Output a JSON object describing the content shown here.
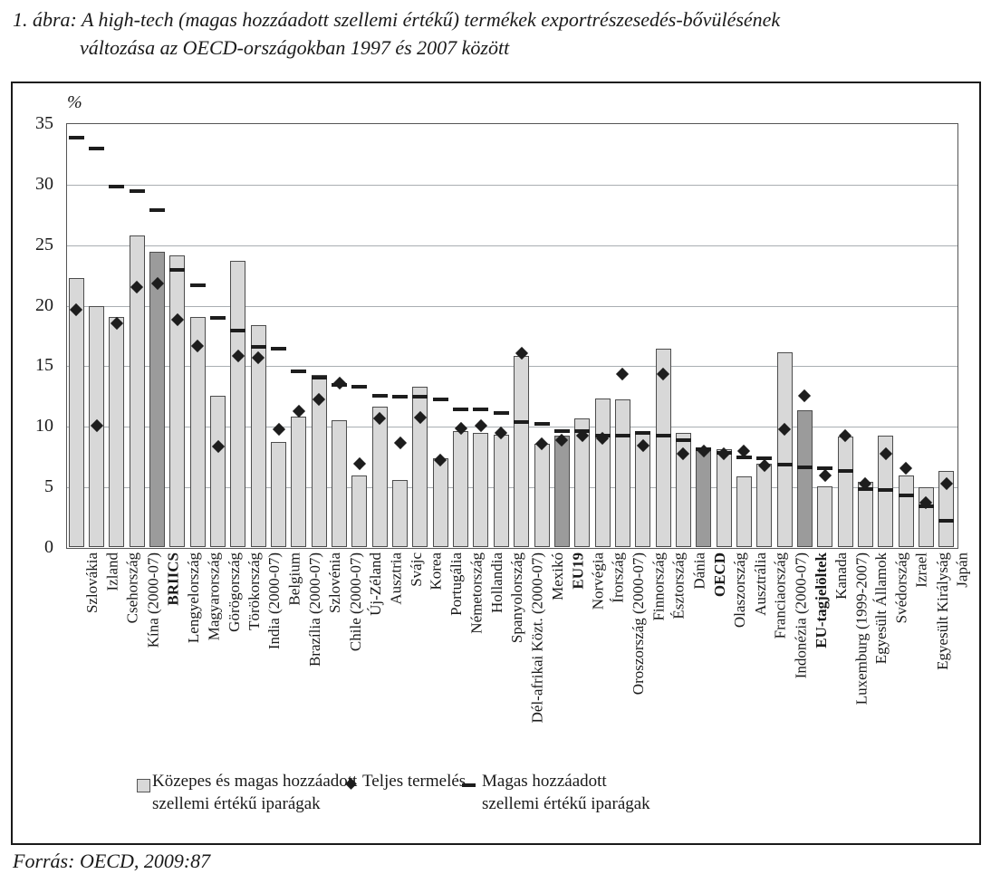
{
  "figure": {
    "title_line1": "1. ábra: A high-tech (magas hozzáadott szellemi értékű) termékek exportrészesedés-bővülésének",
    "title_line2": "változása az OECD-országokban 1997 és 2007 között",
    "unit_label": "%",
    "source": "Forrás: OECD, 2009:87"
  },
  "legend": {
    "bar_label_line1": "Közepes és magas hozzáadott",
    "bar_label_line2": "szellemi értékű iparágak",
    "diamond_label": "Teljes termelés",
    "dash_label_line1": "Magas hozzáadott",
    "dash_label_line2": "szellemi értékű iparágak"
  },
  "chart_data": {
    "type": "bar",
    "title": "A high-tech termékek exportrészesedés-bővülésének változása az OECD-országokban 1997 és 2007 között",
    "xlabel": "",
    "ylabel": "%",
    "ylim": [
      0,
      35
    ],
    "yticks": [
      0,
      5,
      10,
      15,
      20,
      25,
      30,
      35
    ],
    "grid": true,
    "legend_position": "bottom",
    "categories": [
      "Szlovákia",
      "Izland",
      "Csehország",
      "Kína (2000-07)",
      "BRIICS",
      "Lengyelország",
      "Magyarország",
      "Görögország",
      "Törökország",
      "India (2000-07)",
      "Belgium",
      "Brazília (2000-07)",
      "Szlovénia",
      "Chile (2000-07)",
      "Új-Zéland",
      "Ausztria",
      "Svájc",
      "Korea",
      "Portugália",
      "Németország",
      "Hollandia",
      "Spanyolország",
      "Dél-afrikai Közt. (2000-07)",
      "Mexikó",
      "EU19",
      "Norvégia",
      "Írország",
      "Oroszország (2000-07)",
      "Finnország",
      "Észtország",
      "Dánia",
      "OECD",
      "Olaszország",
      "Ausztrália",
      "Franciaország",
      "Indonézia (2000-07)",
      "EU-tagjelöltek",
      "Kanada",
      "Luxemburg (1999-2007)",
      "Egyesült Államok",
      "Svédország",
      "Izrael",
      "Egyesült Királyság",
      "Japán"
    ],
    "emphasized_categories": [
      "BRIICS",
      "EU19",
      "OECD",
      "EU-tagjelöltek"
    ],
    "series": [
      {
        "name": "Közepes és magas hozzáadott szellemi értékű iparágak",
        "marker": "bar",
        "values": [
          22.2,
          19.9,
          19.0,
          25.7,
          24.4,
          24.1,
          19.0,
          12.5,
          23.6,
          18.3,
          8.7,
          10.8,
          14.2,
          10.5,
          5.9,
          11.6,
          5.5,
          13.2,
          7.3,
          9.6,
          9.4,
          9.3,
          15.8,
          8.5,
          9.2,
          10.6,
          12.3,
          12.2,
          9.6,
          16.4,
          9.4,
          8.2,
          8.1,
          5.8,
          6.9,
          16.1,
          11.3,
          5.0,
          9.1,
          5.4,
          9.2,
          5.9,
          4.9,
          6.3
        ]
      },
      {
        "name": "Teljes termelés",
        "marker": "diamond",
        "values": [
          19.6,
          10.0,
          18.5,
          21.5,
          21.8,
          18.8,
          16.6,
          8.3,
          15.8,
          15.6,
          9.7,
          11.2,
          12.2,
          13.5,
          6.9,
          10.6,
          8.6,
          10.7,
          7.2,
          9.8,
          10.0,
          9.4,
          16.0,
          8.5,
          8.8,
          9.2,
          9.0,
          14.3,
          8.4,
          14.3,
          7.7,
          7.9,
          7.7,
          7.9,
          6.7,
          9.7,
          12.5,
          5.9,
          9.2,
          5.2,
          7.7,
          6.5,
          3.7,
          5.2
        ]
      },
      {
        "name": "Magas hozzáadott szellemi értékű iparágak",
        "marker": "dash",
        "values": [
          33.8,
          32.9,
          29.8,
          29.4,
          27.8,
          22.9,
          21.6,
          18.9,
          17.9,
          16.5,
          16.4,
          14.5,
          14.0,
          13.4,
          13.2,
          12.5,
          12.4,
          12.4,
          12.2,
          11.4,
          11.4,
          11.1,
          10.3,
          10.2,
          9.6,
          9.6,
          9.2,
          9.2,
          9.4,
          9.2,
          8.8,
          8.1,
          7.8,
          7.4,
          7.3,
          6.8,
          6.6,
          6.5,
          6.3,
          4.8,
          4.7,
          4.3,
          3.4,
          2.2
        ]
      }
    ],
    "colors": {
      "bar_fill": "#d8d8d8",
      "bar_emphasis_fill": "#9b9b9b",
      "bar_border": "#4d4d4d",
      "marker": "#1d1d1d",
      "gridline": "#a9aeb2",
      "axis_frame": "#555555"
    }
  }
}
